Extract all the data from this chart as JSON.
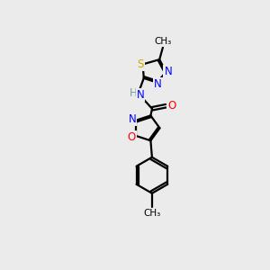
{
  "background_color": "#ebebeb",
  "bond_color": "#000000",
  "atom_colors": {
    "N": "#0000ff",
    "O": "#ff0000",
    "S": "#ccaa00",
    "H": "#7a9ea0",
    "C": "#000000"
  }
}
